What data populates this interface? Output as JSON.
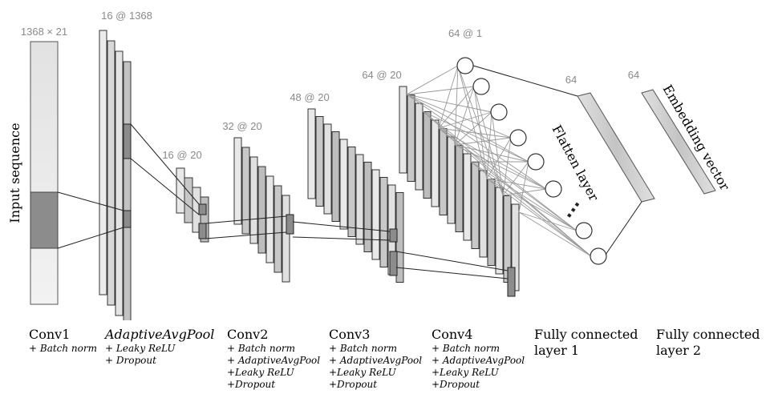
{
  "input": {
    "label": "Input sequence",
    "dim": "1368 × 21"
  },
  "layer_dims": {
    "adaptive_pool_1": "16 @ 1368",
    "conv1_out": "16 @ 20",
    "conv2_out": "32 @ 20",
    "conv3_out": "48 @ 20",
    "conv4_out": "64 @ 20",
    "flatten_nodes": "64 @ 1",
    "fc1": "64",
    "fc2": "64"
  },
  "labels": {
    "flatten": "Flatten layer",
    "embedding": "Embedding vector",
    "ellipsis": "..."
  },
  "stages": [
    {
      "name": "Conv1",
      "italic": false,
      "ops": [
        "+ Batch norm"
      ]
    },
    {
      "name": "AdaptiveAvgPool",
      "italic": true,
      "ops": [
        "+ Leaky ReLU",
        "+ Dropout"
      ]
    },
    {
      "name": "Conv2",
      "italic": false,
      "ops": [
        "+ Batch norm",
        "+ AdaptiveAvgPool",
        "+Leaky ReLU",
        "+Dropout"
      ]
    },
    {
      "name": "Conv3",
      "italic": false,
      "ops": [
        "+ Batch norm",
        "+ AdaptiveAvgPool",
        "+Leaky ReLU",
        "+Dropout"
      ]
    },
    {
      "name": "Conv4",
      "italic": false,
      "ops": [
        "+ Batch norm",
        "+ AdaptiveAvgPool",
        "+Leaky ReLU",
        "+Dropout"
      ]
    },
    {
      "name": "Fully connected",
      "name2": "layer 1",
      "italic": false,
      "ops": []
    },
    {
      "name": "Fully connected",
      "name2": "layer 2",
      "italic": false,
      "ops": []
    }
  ],
  "colors": {
    "light_fill": "#e6e6e6",
    "mid_fill": "#c8c8c8",
    "dark_fill": "#8c8c8c",
    "stroke": "#333333",
    "fc_lines": "#999999",
    "dim_text": "#8a8a8a"
  }
}
